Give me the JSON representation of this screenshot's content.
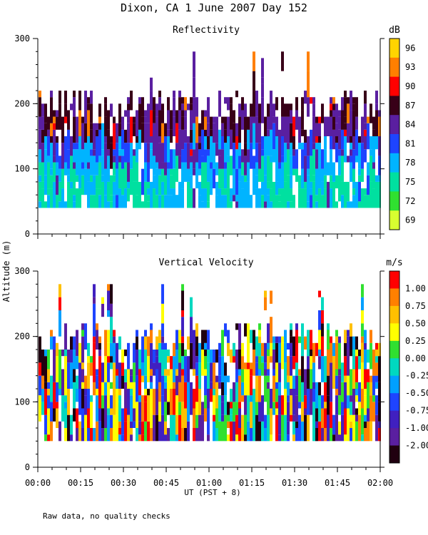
{
  "figure": {
    "title": "Dixon, CA  1 June 2007  Day 152",
    "y_label": "Altitude (m)",
    "x_label": "UT  (PST + 8)",
    "x_ticks": [
      "00:00",
      "00:15",
      "00:30",
      "00:45",
      "01:00",
      "01:15",
      "01:30",
      "01:45",
      "02:00"
    ],
    "footnote": "Raw data, no quality checks"
  },
  "chart_data": [
    {
      "type": "heatmap",
      "title": "Reflectivity",
      "xlabel": "UT  (PST + 8)",
      "ylabel": "Altitude (m)",
      "x_range_minutes": [
        0,
        120
      ],
      "ylim": [
        0,
        300
      ],
      "y_ticks": [
        "0",
        "100",
        "200",
        "300"
      ],
      "colorbar": {
        "unit": "dB",
        "labels": [
          "96",
          "93",
          "90",
          "87",
          "84",
          "81",
          "78",
          "75",
          "72",
          "69"
        ],
        "colors": [
          "#ffd400",
          "#ff7f00",
          "#ff0000",
          "#380018",
          "#5a1fa0",
          "#1e44ff",
          "#00b4ff",
          "#00e0a0",
          "#30e030",
          "#d8ff30"
        ]
      },
      "data_extent_m": [
        40,
        200
      ]
    },
    {
      "type": "heatmap",
      "title": "Vertical Velocity",
      "xlabel": "UT  (PST + 8)",
      "ylabel": "Altitude (m)",
      "x_range_minutes": [
        0,
        120
      ],
      "ylim": [
        0,
        300
      ],
      "y_ticks": [
        "0",
        "100",
        "200",
        "300"
      ],
      "colorbar": {
        "unit": "m/s",
        "labels": [
          "1.00",
          "0.75",
          "0.50",
          "0.25",
          "0.00",
          "-0.25",
          "-0.50",
          "-0.75",
          "-1.00",
          "-2.00"
        ],
        "colors": [
          "#ff0000",
          "#ff8000",
          "#ffc000",
          "#ffff00",
          "#30e030",
          "#00d8c0",
          "#00a0ff",
          "#1e44ff",
          "#4020c0",
          "#5a1fa0",
          "#200010"
        ]
      },
      "data_extent_m": [
        40,
        200
      ]
    }
  ]
}
